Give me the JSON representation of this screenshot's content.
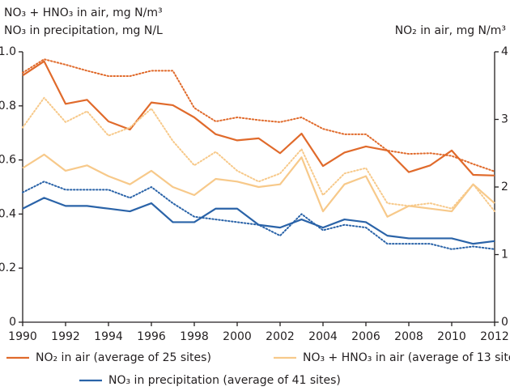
{
  "chart_data": {
    "type": "line",
    "ylabel": [
      "NO₃ + HNO₃ in air, mg N/m³",
      "NO₃ in precipitation, mg N/L"
    ],
    "y2label": "NO₂ in air, mg N/m³",
    "x": [
      1990,
      1991,
      1992,
      1993,
      1994,
      1995,
      1996,
      1997,
      1998,
      1999,
      2000,
      2001,
      2002,
      2003,
      2004,
      2005,
      2006,
      2007,
      2008,
      2009,
      2010,
      2011,
      2012
    ],
    "xlim": [
      1990,
      2012
    ],
    "xticks": [
      1990,
      1992,
      1994,
      1996,
      1998,
      2000,
      2002,
      2004,
      2006,
      2008,
      2010,
      2012
    ],
    "ylim": [
      0,
      1
    ],
    "yticks": [
      0,
      0.2,
      0.4,
      0.6,
      0.8,
      {
        "value": 1,
        "label": "1.0"
      }
    ],
    "y2lim": [
      0,
      4
    ],
    "y2ticks": [
      0,
      1,
      2,
      3,
      4
    ],
    "series": [
      {
        "name": "NO₂ in air (average of 25 sites)",
        "color": "#e06a2b",
        "axis": "y2",
        "style": "solid",
        "values": [
          3.65,
          3.86,
          3.23,
          3.29,
          2.97,
          2.85,
          3.25,
          3.21,
          3.03,
          2.78,
          2.69,
          2.72,
          2.5,
          2.79,
          2.31,
          2.51,
          2.6,
          2.54,
          2.22,
          2.32,
          2.54,
          2.18,
          2.17
        ]
      },
      {
        "color": "#e06a2b",
        "axis": "y2",
        "style": "dotted",
        "values": [
          3.69,
          3.89,
          3.81,
          3.72,
          3.64,
          3.64,
          3.72,
          3.72,
          3.17,
          2.97,
          3.03,
          2.99,
          2.96,
          3.03,
          2.86,
          2.78,
          2.78,
          2.54,
          2.49,
          2.5,
          2.46,
          2.34,
          2.23
        ]
      },
      {
        "name": "NO₃ + HNO₃ in air (average of 13 sites)",
        "color": "#f7c98a",
        "style": "solid",
        "values": [
          0.57,
          0.62,
          0.56,
          0.58,
          0.54,
          0.51,
          0.56,
          0.5,
          0.47,
          0.53,
          0.52,
          0.5,
          0.51,
          0.61,
          0.41,
          0.51,
          0.54,
          0.39,
          0.43,
          0.42,
          0.41,
          0.51,
          0.44
        ]
      },
      {
        "color": "#f7c98a",
        "style": "dotted",
        "values": [
          0.72,
          0.83,
          0.74,
          0.78,
          0.69,
          0.72,
          0.79,
          0.67,
          0.58,
          0.63,
          0.56,
          0.52,
          0.55,
          0.64,
          0.47,
          0.55,
          0.57,
          0.44,
          0.43,
          0.44,
          0.42,
          0.51,
          0.41
        ]
      },
      {
        "name": "NO₃ in precipitation (average of 41 sites)",
        "color": "#2a63a8",
        "style": "solid",
        "values": [
          0.42,
          0.46,
          0.43,
          0.43,
          0.42,
          0.41,
          0.44,
          0.37,
          0.37,
          0.42,
          0.42,
          0.36,
          0.35,
          0.38,
          0.35,
          0.38,
          0.37,
          0.32,
          0.31,
          0.31,
          0.31,
          0.29,
          0.3
        ]
      },
      {
        "color": "#2a63a8",
        "style": "dotted",
        "values": [
          0.48,
          0.52,
          0.49,
          0.49,
          0.49,
          0.46,
          0.5,
          0.44,
          0.39,
          0.38,
          0.37,
          0.36,
          0.32,
          0.4,
          0.34,
          0.36,
          0.35,
          0.29,
          0.29,
          0.29,
          0.27,
          0.28,
          0.27
        ]
      }
    ]
  }
}
